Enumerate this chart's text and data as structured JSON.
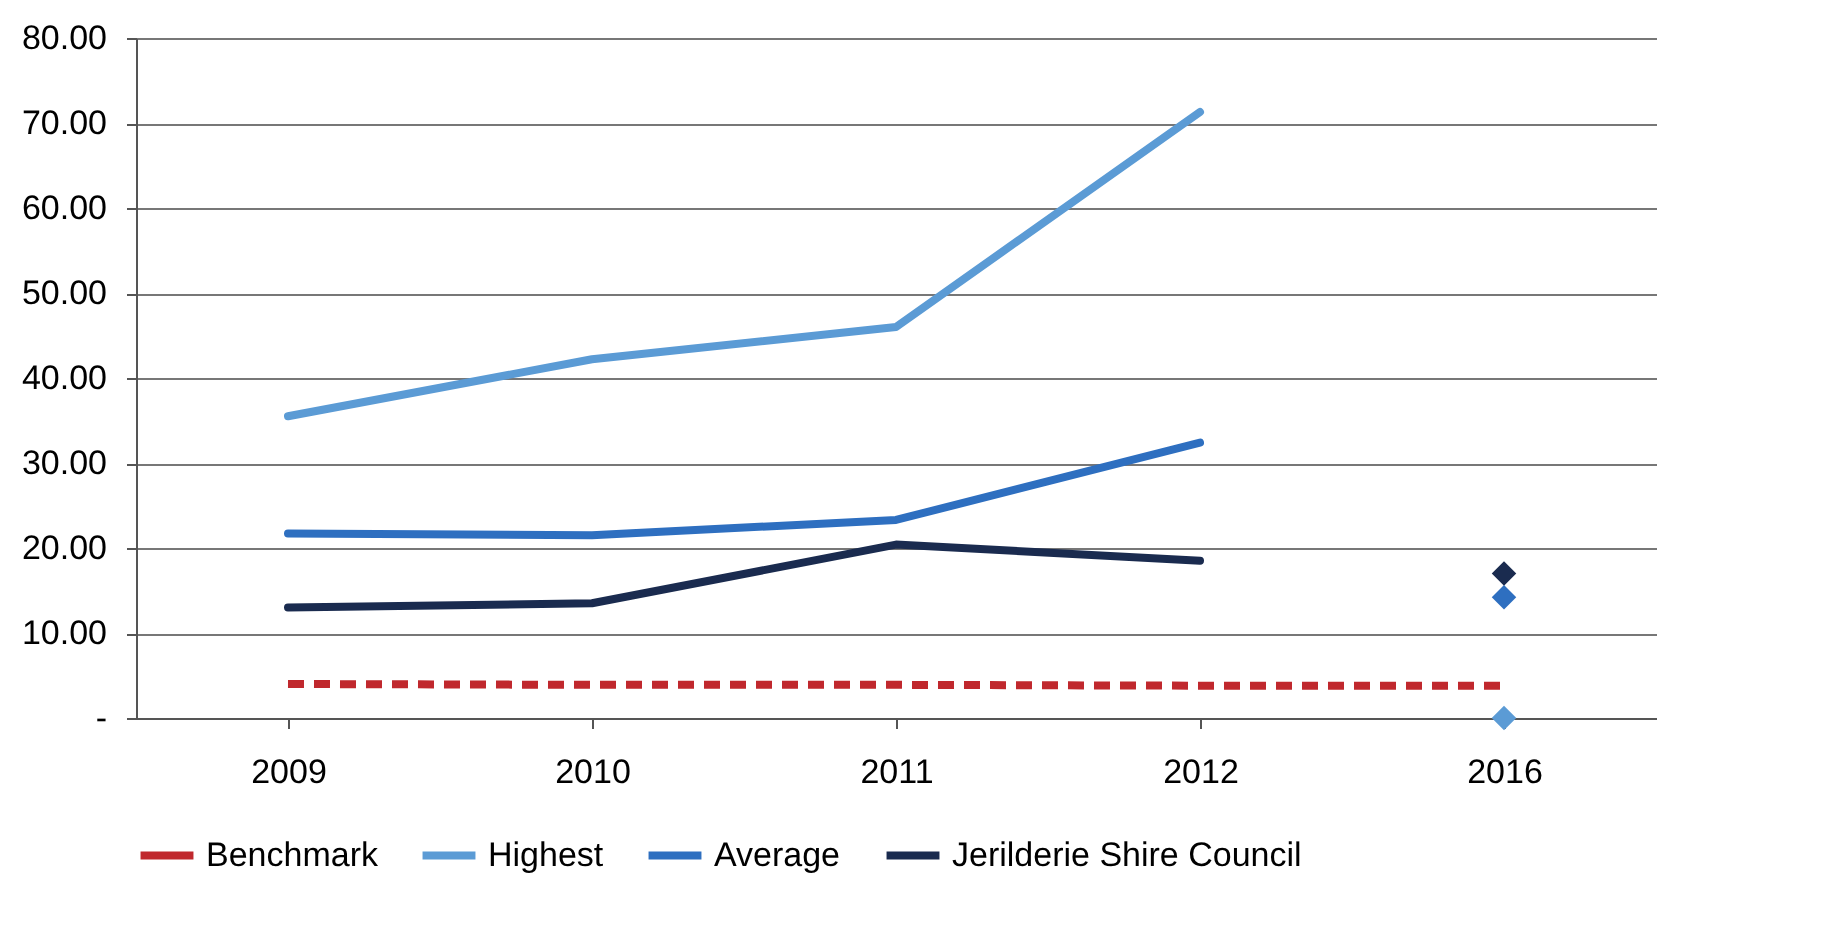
{
  "chart_data": {
    "type": "line",
    "categories": [
      "2009",
      "2010",
      "2011",
      "2012",
      "2016"
    ],
    "ylim": [
      0,
      80
    ],
    "yticks": [
      {
        "value": 0,
        "label": "-"
      },
      {
        "value": 10,
        "label": "10.00"
      },
      {
        "value": 20,
        "label": "20.00"
      },
      {
        "value": 30,
        "label": "30.00"
      },
      {
        "value": 40,
        "label": "40.00"
      },
      {
        "value": 50,
        "label": "50.00"
      },
      {
        "value": 60,
        "label": "60.00"
      },
      {
        "value": 70,
        "label": "70.00"
      },
      {
        "value": 80,
        "label": "80.00"
      }
    ],
    "grid": "y",
    "legend": "bottom",
    "series": [
      {
        "name": "Benchmark",
        "color": "#c0282d",
        "line_style": "dashed",
        "values": [
          4.0,
          3.9,
          3.9,
          3.8,
          3.8
        ]
      },
      {
        "name": "Highest",
        "color": "#5b9bd5",
        "values": [
          35.5,
          42.2,
          46.0,
          71.3,
          null
        ]
      },
      {
        "name": "Average",
        "color": "#2e6fc0",
        "values": [
          21.7,
          21.5,
          23.3,
          32.4,
          null
        ]
      },
      {
        "name": "Jerilderie Shire Council",
        "color": "#1a2b4f",
        "values": [
          13.0,
          13.5,
          20.4,
          18.5,
          null
        ]
      },
      {
        "type": "scatter",
        "marker": "diamond",
        "color": "#5b9bd5",
        "values": [
          null,
          null,
          null,
          null,
          0
        ]
      },
      {
        "type": "scatter",
        "marker": "diamond",
        "color": "#2e6fc0",
        "values": [
          null,
          null,
          null,
          null,
          14.2
        ]
      },
      {
        "type": "scatter",
        "marker": "diamond",
        "color": "#1a2b4f",
        "values": [
          null,
          null,
          null,
          null,
          17.0
        ]
      }
    ]
  }
}
